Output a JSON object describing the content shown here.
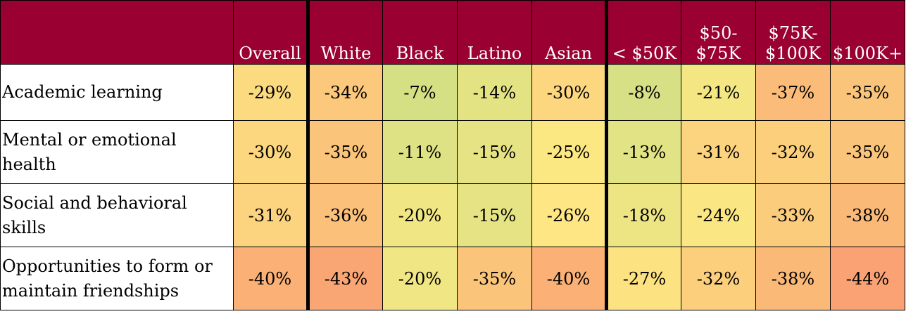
{
  "chart_data": {
    "type": "heatmap",
    "columns": [
      "Overall",
      "White",
      "Black",
      "Latino",
      "Asian",
      "< $50K",
      "$50-\n$75K",
      "$75K-\n$100K",
      "$100K+"
    ],
    "rows": [
      "Academic learning",
      "Mental or emotional health",
      "Social and behavioral skills",
      "Opportunities to form or maintain friendships"
    ],
    "values": [
      [
        -29,
        -34,
        -7,
        -14,
        -30,
        -8,
        -21,
        -37,
        -35
      ],
      [
        -30,
        -35,
        -11,
        -15,
        -25,
        -13,
        -31,
        -32,
        -35
      ],
      [
        -31,
        -36,
        -20,
        -15,
        -26,
        -18,
        -24,
        -33,
        -38
      ],
      [
        -40,
        -43,
        -20,
        -35,
        -40,
        -27,
        -32,
        -38,
        -44
      ]
    ],
    "value_format": "percent",
    "colors": {
      "header_bg": "#9b0033",
      "header_text": "#ffffff",
      "scale_low": "#d5e085",
      "scale_mid": "#fde883",
      "scale_high": "#faa273"
    }
  }
}
